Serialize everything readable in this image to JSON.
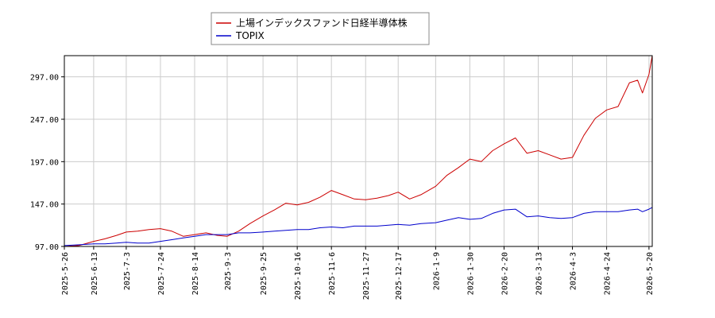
{
  "chart_data": {
    "type": "line",
    "x_type": "date",
    "xlim": [
      "2025-05-26",
      "2026-05-22"
    ],
    "ylim": [
      97.0,
      322.0
    ],
    "yticks": [
      97.0,
      147.0,
      197.0,
      247.0,
      297.0
    ],
    "ytick_labels": [
      "97.00",
      "147.00",
      "197.00",
      "247.00",
      "297.00"
    ],
    "xticks": [
      "2025-5-26",
      "2025-6-13",
      "2025-7-3",
      "2025-7-24",
      "2025-8-14",
      "2025-9-3",
      "2025-9-25",
      "2025-10-16",
      "2025-11-6",
      "2025-11-27",
      "2025-12-17",
      "2026-1-9",
      "2026-1-30",
      "2026-2-20",
      "2026-3-13",
      "2026-4-3",
      "2026-4-24",
      "2026-5-20"
    ],
    "grid": true,
    "legend_position": "top-center",
    "series": [
      {
        "name": "上場インデックスファンド日経半導体株",
        "color": "#cc0000",
        "points": [
          [
            "2025-05-26",
            97
          ],
          [
            "2025-06-04",
            98
          ],
          [
            "2025-06-13",
            103
          ],
          [
            "2025-06-20",
            106
          ],
          [
            "2025-06-27",
            110
          ],
          [
            "2025-07-03",
            114
          ],
          [
            "2025-07-10",
            115
          ],
          [
            "2025-07-17",
            117
          ],
          [
            "2025-07-24",
            118
          ],
          [
            "2025-07-31",
            115
          ],
          [
            "2025-08-07",
            109
          ],
          [
            "2025-08-14",
            111
          ],
          [
            "2025-08-21",
            113
          ],
          [
            "2025-08-28",
            110
          ],
          [
            "2025-09-03",
            109
          ],
          [
            "2025-09-10",
            115
          ],
          [
            "2025-09-17",
            124
          ],
          [
            "2025-09-25",
            133
          ],
          [
            "2025-10-02",
            140
          ],
          [
            "2025-10-09",
            148
          ],
          [
            "2025-10-16",
            146
          ],
          [
            "2025-10-23",
            149
          ],
          [
            "2025-10-30",
            155
          ],
          [
            "2025-11-06",
            163
          ],
          [
            "2025-11-13",
            158
          ],
          [
            "2025-11-20",
            153
          ],
          [
            "2025-11-27",
            152
          ],
          [
            "2025-12-04",
            154
          ],
          [
            "2025-12-11",
            157
          ],
          [
            "2025-12-17",
            161
          ],
          [
            "2025-12-24",
            153
          ],
          [
            "2025-12-31",
            158
          ],
          [
            "2026-01-09",
            168
          ],
          [
            "2026-01-16",
            181
          ],
          [
            "2026-01-23",
            190
          ],
          [
            "2026-01-30",
            200
          ],
          [
            "2026-02-06",
            197
          ],
          [
            "2026-02-13",
            210
          ],
          [
            "2026-02-20",
            218
          ],
          [
            "2026-02-27",
            225
          ],
          [
            "2026-03-06",
            207
          ],
          [
            "2026-03-13",
            210
          ],
          [
            "2026-03-20",
            205
          ],
          [
            "2026-03-27",
            200
          ],
          [
            "2026-04-03",
            202
          ],
          [
            "2026-04-10",
            228
          ],
          [
            "2026-04-17",
            248
          ],
          [
            "2026-04-24",
            258
          ],
          [
            "2026-05-01",
            262
          ],
          [
            "2026-05-08",
            290
          ],
          [
            "2026-05-13",
            293
          ],
          [
            "2026-05-16",
            278
          ],
          [
            "2026-05-20",
            300
          ],
          [
            "2026-05-22",
            322
          ]
        ]
      },
      {
        "name": "TOPIX",
        "color": "#0000cc",
        "points": [
          [
            "2025-05-26",
            98
          ],
          [
            "2025-06-04",
            99
          ],
          [
            "2025-06-13",
            100
          ],
          [
            "2025-06-20",
            100
          ],
          [
            "2025-06-27",
            101
          ],
          [
            "2025-07-03",
            102
          ],
          [
            "2025-07-10",
            101
          ],
          [
            "2025-07-17",
            101
          ],
          [
            "2025-07-24",
            103
          ],
          [
            "2025-07-31",
            105
          ],
          [
            "2025-08-07",
            107
          ],
          [
            "2025-08-14",
            109
          ],
          [
            "2025-08-21",
            111
          ],
          [
            "2025-08-28",
            111
          ],
          [
            "2025-09-03",
            111
          ],
          [
            "2025-09-10",
            113
          ],
          [
            "2025-09-17",
            113
          ],
          [
            "2025-09-25",
            114
          ],
          [
            "2025-10-02",
            115
          ],
          [
            "2025-10-09",
            116
          ],
          [
            "2025-10-16",
            117
          ],
          [
            "2025-10-23",
            117
          ],
          [
            "2025-10-30",
            119
          ],
          [
            "2025-11-06",
            120
          ],
          [
            "2025-11-13",
            119
          ],
          [
            "2025-11-20",
            121
          ],
          [
            "2025-11-27",
            121
          ],
          [
            "2025-12-04",
            121
          ],
          [
            "2025-12-11",
            122
          ],
          [
            "2025-12-17",
            123
          ],
          [
            "2025-12-24",
            122
          ],
          [
            "2025-12-31",
            124
          ],
          [
            "2026-01-09",
            125
          ],
          [
            "2026-01-16",
            128
          ],
          [
            "2026-01-23",
            131
          ],
          [
            "2026-01-30",
            129
          ],
          [
            "2026-02-06",
            130
          ],
          [
            "2026-02-13",
            136
          ],
          [
            "2026-02-20",
            140
          ],
          [
            "2026-02-27",
            141
          ],
          [
            "2026-03-06",
            132
          ],
          [
            "2026-03-13",
            133
          ],
          [
            "2026-03-20",
            131
          ],
          [
            "2026-03-27",
            130
          ],
          [
            "2026-04-03",
            131
          ],
          [
            "2026-04-10",
            136
          ],
          [
            "2026-04-17",
            138
          ],
          [
            "2026-04-24",
            138
          ],
          [
            "2026-05-01",
            138
          ],
          [
            "2026-05-08",
            140
          ],
          [
            "2026-05-13",
            141
          ],
          [
            "2026-05-16",
            138
          ],
          [
            "2026-05-20",
            141
          ],
          [
            "2026-05-22",
            143
          ]
        ]
      }
    ]
  }
}
